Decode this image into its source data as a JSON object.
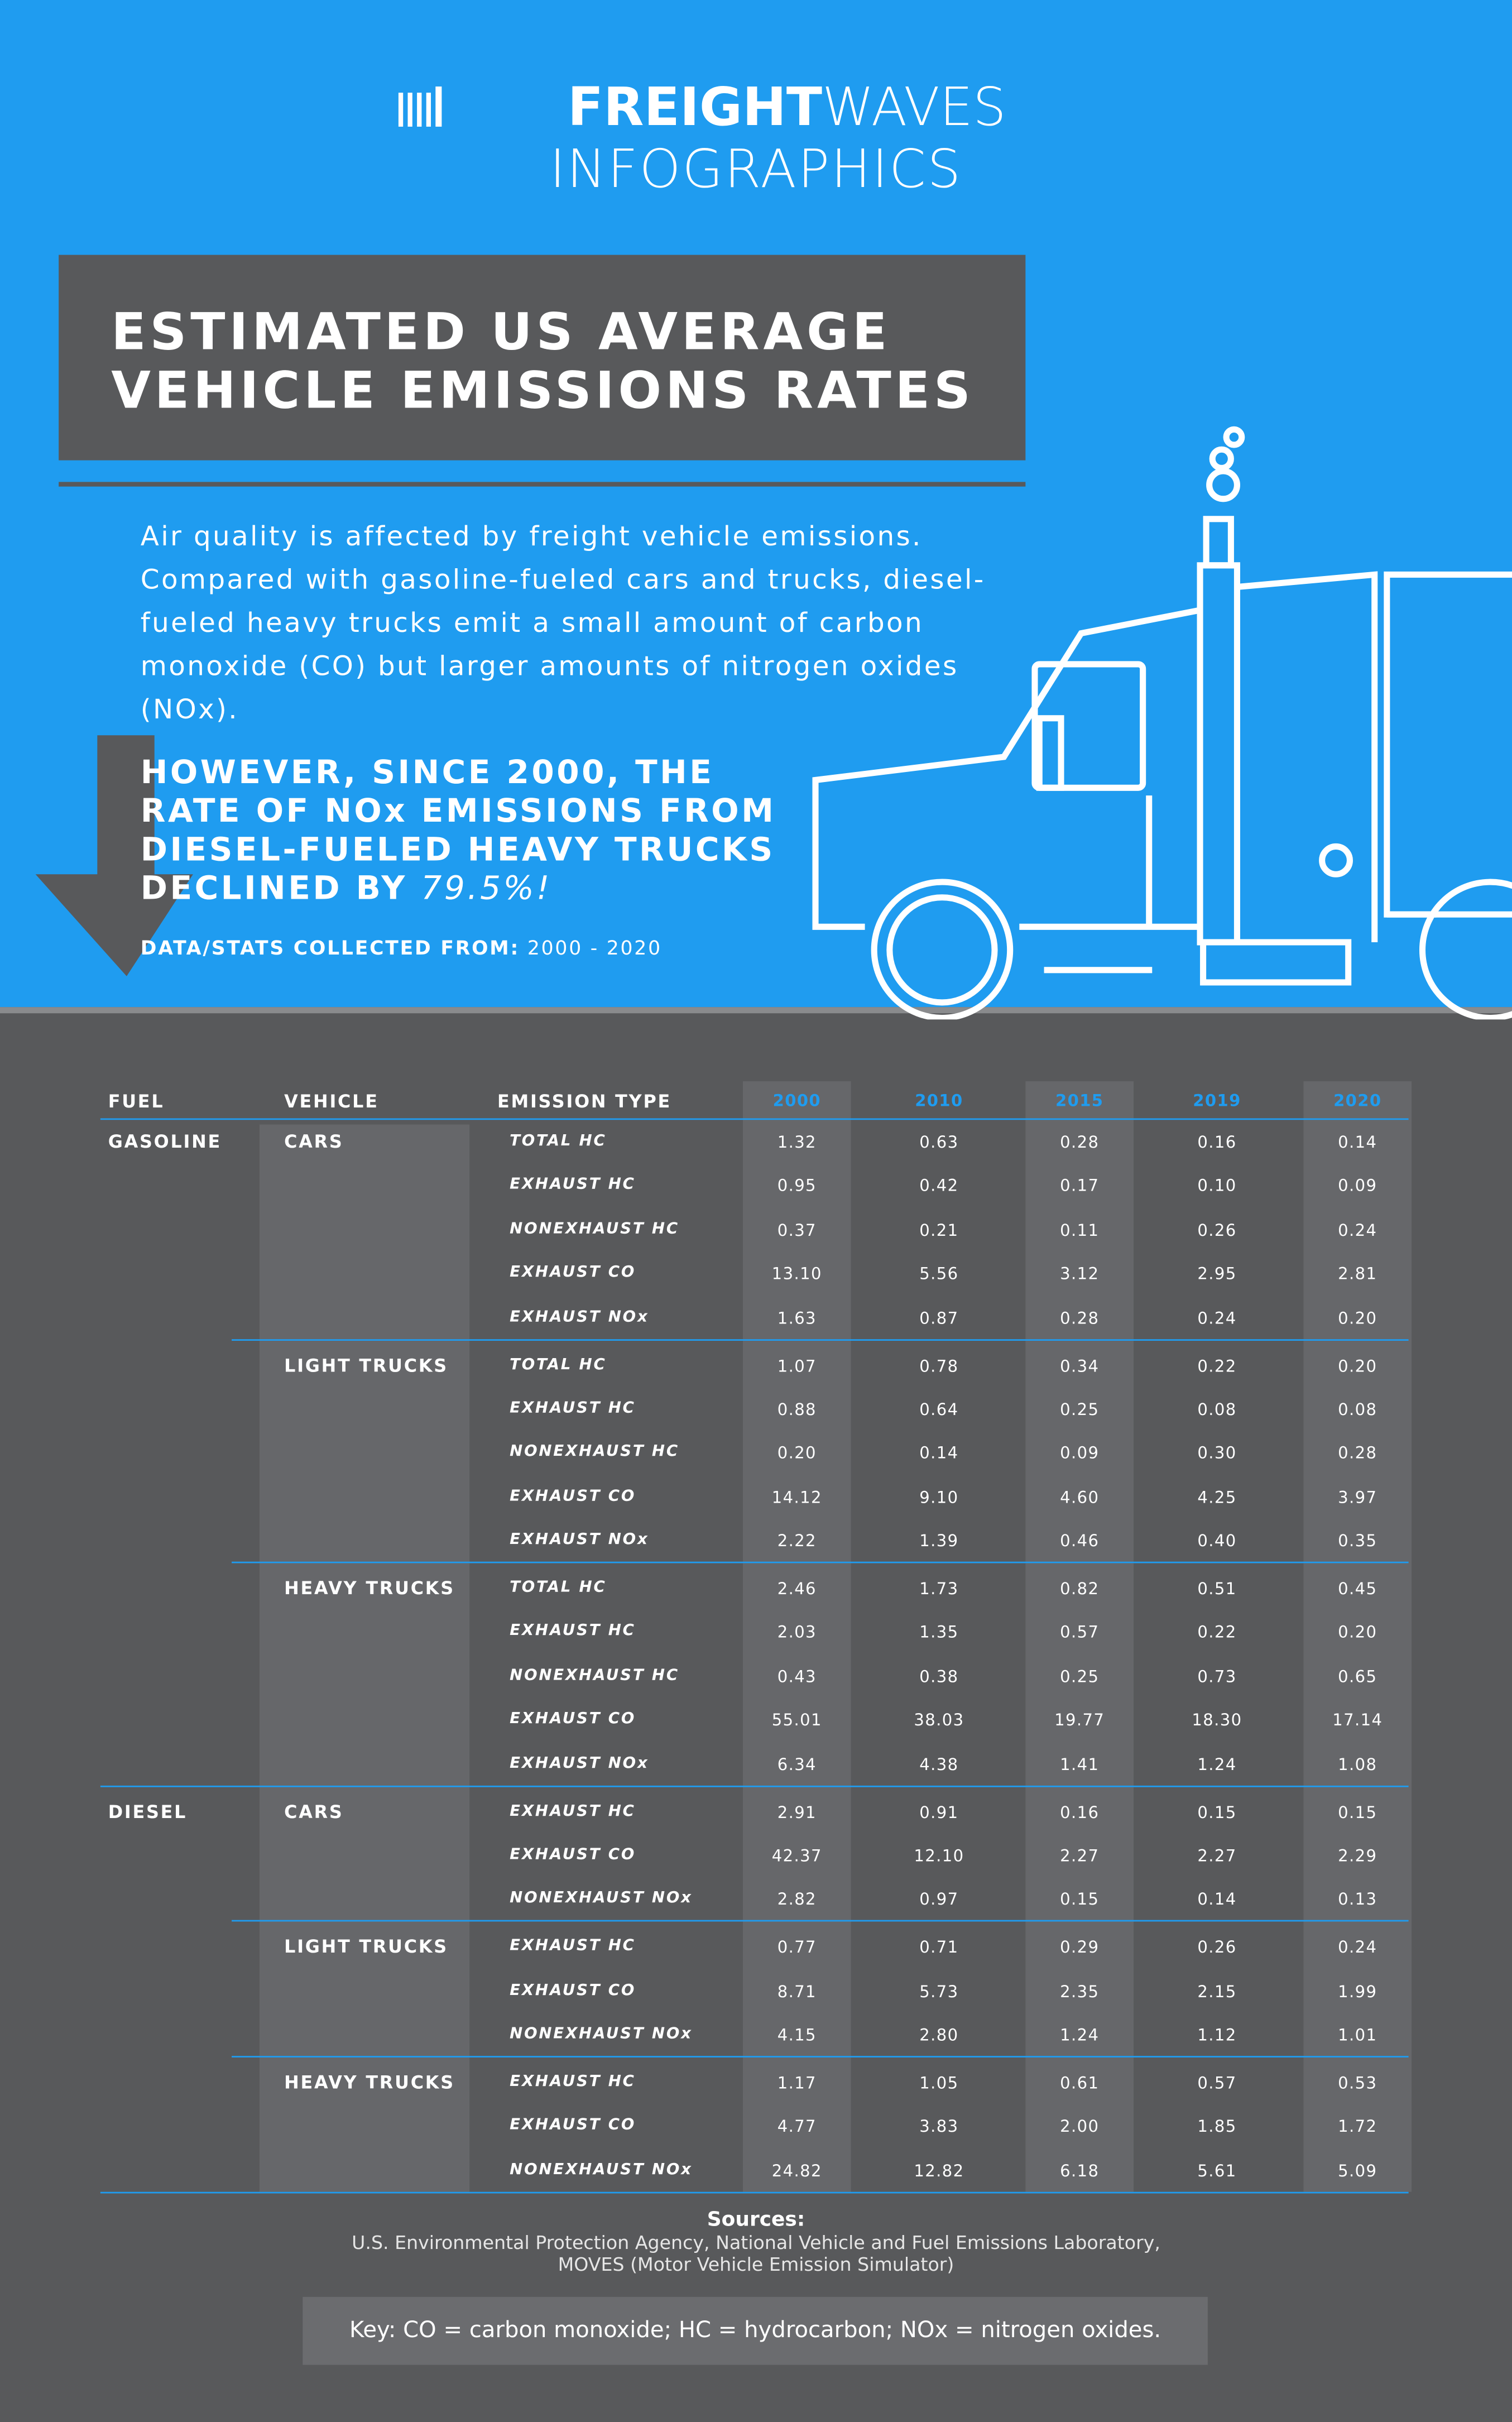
{
  "header": {
    "logo_bold": "FREIGHT",
    "logo_light": "WAVES",
    "logo_sub": "INFOGRAPHICS"
  },
  "title": [
    "ESTIMATED US AVERAGE",
    "VEHICLE EMISSIONS RATES"
  ],
  "intro": "Air quality is affected by freight vehicle emissions. Compared with gasoline-fueled cars and trucks, diesel-fueled heavy trucks emit a small amount of carbon monoxide (CO) but larger amounts of nitrogen oxides (NOx).",
  "highlight": {
    "text": "HOWEVER, SINCE 2000, THE RATE OF NOx EMISSIONS FROM DIESEL-FUELED HEAVY TRUCKS DECLINED BY",
    "figure": "79.5%!"
  },
  "data_range": {
    "label": "DATA/STATS COLLECTED FROM:",
    "value": "2000 - 2020"
  },
  "table": {
    "columns": [
      "FUEL",
      "VEHICLE",
      "EMISSION TYPE",
      "2000",
      "2010",
      "2015",
      "2019",
      "2020"
    ],
    "groups": [
      {
        "fuel": "GASOLINE",
        "vehicles": [
          {
            "vehicle": "CARS",
            "rows": [
              {
                "type": "TOTAL HC",
                "values": [
                  "1.32",
                  "0.63",
                  "0.28",
                  "0.16",
                  "0.14"
                ]
              },
              {
                "type": "EXHAUST HC",
                "values": [
                  "0.95",
                  "0.42",
                  "0.17",
                  "0.10",
                  "0.09"
                ]
              },
              {
                "type": "NONEXHAUST HC",
                "values": [
                  "0.37",
                  "0.21",
                  "0.11",
                  "0.26",
                  "0.24"
                ]
              },
              {
                "type": "EXHAUST CO",
                "values": [
                  "13.10",
                  "5.56",
                  "3.12",
                  "2.95",
                  "2.81"
                ]
              },
              {
                "type": "EXHAUST NOx",
                "values": [
                  "1.63",
                  "0.87",
                  "0.28",
                  "0.24",
                  "0.20"
                ]
              }
            ]
          },
          {
            "vehicle": "LIGHT TRUCKS",
            "rows": [
              {
                "type": "TOTAL HC",
                "values": [
                  "1.07",
                  "0.78",
                  "0.34",
                  "0.22",
                  "0.20"
                ]
              },
              {
                "type": "EXHAUST HC",
                "values": [
                  "0.88",
                  "0.64",
                  "0.25",
                  "0.08",
                  "0.08"
                ]
              },
              {
                "type": "NONEXHAUST HC",
                "values": [
                  "0.20",
                  "0.14",
                  "0.09",
                  "0.30",
                  "0.28"
                ]
              },
              {
                "type": "EXHAUST CO",
                "values": [
                  "14.12",
                  "9.10",
                  "4.60",
                  "4.25",
                  "3.97"
                ]
              },
              {
                "type": "EXHAUST NOx",
                "values": [
                  "2.22",
                  "1.39",
                  "0.46",
                  "0.40",
                  "0.35"
                ]
              }
            ]
          },
          {
            "vehicle": "HEAVY TRUCKS",
            "rows": [
              {
                "type": "TOTAL HC",
                "values": [
                  "2.46",
                  "1.73",
                  "0.82",
                  "0.51",
                  "0.45"
                ]
              },
              {
                "type": "EXHAUST HC",
                "values": [
                  "2.03",
                  "1.35",
                  "0.57",
                  "0.22",
                  "0.20"
                ]
              },
              {
                "type": "NONEXHAUST HC",
                "values": [
                  "0.43",
                  "0.38",
                  "0.25",
                  "0.73",
                  "0.65"
                ]
              },
              {
                "type": "EXHAUST CO",
                "values": [
                  "55.01",
                  "38.03",
                  "19.77",
                  "18.30",
                  "17.14"
                ]
              },
              {
                "type": "EXHAUST NOx",
                "values": [
                  "6.34",
                  "4.38",
                  "1.41",
                  "1.24",
                  "1.08"
                ]
              }
            ]
          }
        ]
      },
      {
        "fuel": "DIESEL",
        "vehicles": [
          {
            "vehicle": "CARS",
            "rows": [
              {
                "type": "EXHAUST HC",
                "values": [
                  "2.91",
                  "0.91",
                  "0.16",
                  "0.15",
                  "0.15"
                ]
              },
              {
                "type": "EXHAUST CO",
                "values": [
                  "42.37",
                  "12.10",
                  "2.27",
                  "2.27",
                  "2.29"
                ]
              },
              {
                "type": "NONEXHAUST NOx",
                "values": [
                  "2.82",
                  "0.97",
                  "0.15",
                  "0.14",
                  "0.13"
                ]
              }
            ]
          },
          {
            "vehicle": "LIGHT TRUCKS",
            "rows": [
              {
                "type": "EXHAUST HC",
                "values": [
                  "0.77",
                  "0.71",
                  "0.29",
                  "0.26",
                  "0.24"
                ]
              },
              {
                "type": "EXHAUST CO",
                "values": [
                  "8.71",
                  "5.73",
                  "2.35",
                  "2.15",
                  "1.99"
                ]
              },
              {
                "type": "NONEXHAUST NOx",
                "values": [
                  "4.15",
                  "2.80",
                  "1.24",
                  "1.12",
                  "1.01"
                ]
              }
            ]
          },
          {
            "vehicle": "HEAVY TRUCKS",
            "rows": [
              {
                "type": "EXHAUST HC",
                "values": [
                  "1.17",
                  "1.05",
                  "0.61",
                  "0.57",
                  "0.53"
                ]
              },
              {
                "type": "EXHAUST CO",
                "values": [
                  "4.77",
                  "3.83",
                  "2.00",
                  "1.85",
                  "1.72"
                ]
              },
              {
                "type": "NONEXHAUST NOx",
                "values": [
                  "24.82",
                  "12.82",
                  "6.18",
                  "5.61",
                  "5.09"
                ]
              }
            ]
          }
        ]
      }
    ]
  },
  "sources": {
    "label": "Sources:",
    "lines": [
      "U.S. Environmental Protection Agency, National Vehicle and Fuel Emissions Laboratory,",
      "MOVES (Motor Vehicle Emission Simulator)"
    ]
  },
  "key": "Key: CO = carbon monoxide; HC = hydrocarbon; NOx = nitrogen oxides."
}
